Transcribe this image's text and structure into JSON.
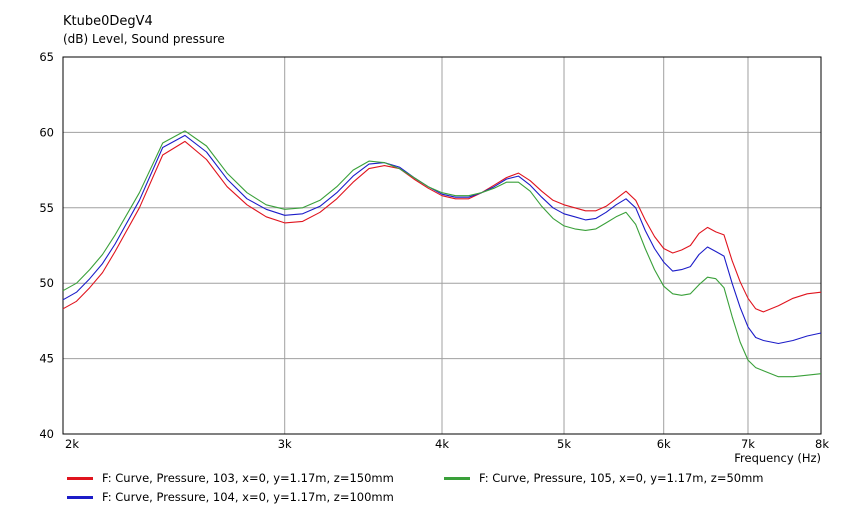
{
  "chart_data": {
    "type": "line",
    "title": "Ktube0DegV4",
    "ylabel": "(dB)  Level, Sound pressure",
    "xlabel": "Frequency  (Hz)",
    "x_scale": "log",
    "xlim": [
      2000,
      8000
    ],
    "ylim": [
      40,
      65
    ],
    "grid": true,
    "legend_position": "bottom",
    "x_ticks": [
      2000,
      3000,
      4000,
      5000,
      6000,
      7000,
      8000
    ],
    "x_tick_labels": [
      "2k",
      "3k",
      "4k",
      "5k",
      "6k",
      "7k",
      "8k"
    ],
    "y_ticks": [
      40,
      45,
      50,
      55,
      60,
      65
    ],
    "y_tick_labels": [
      "40",
      "45",
      "50",
      "55",
      "60",
      "65"
    ],
    "series": [
      {
        "name": "F: Curve, Pressure, 103, x=0, y=1.17m, z=150mm",
        "color": "#e0141e",
        "points": [
          [
            2000,
            48.3
          ],
          [
            2050,
            48.8
          ],
          [
            2100,
            49.7
          ],
          [
            2150,
            50.7
          ],
          [
            2200,
            52.1
          ],
          [
            2300,
            55.0
          ],
          [
            2400,
            58.5
          ],
          [
            2500,
            59.4
          ],
          [
            2600,
            58.2
          ],
          [
            2700,
            56.4
          ],
          [
            2800,
            55.2
          ],
          [
            2900,
            54.4
          ],
          [
            3000,
            54.0
          ],
          [
            3100,
            54.1
          ],
          [
            3200,
            54.7
          ],
          [
            3300,
            55.6
          ],
          [
            3400,
            56.7
          ],
          [
            3500,
            57.6
          ],
          [
            3600,
            57.8
          ],
          [
            3700,
            57.6
          ],
          [
            3800,
            56.9
          ],
          [
            3900,
            56.3
          ],
          [
            4000,
            55.8
          ],
          [
            4100,
            55.6
          ],
          [
            4200,
            55.6
          ],
          [
            4300,
            56.0
          ],
          [
            4400,
            56.5
          ],
          [
            4500,
            57.0
          ],
          [
            4600,
            57.3
          ],
          [
            4700,
            56.8
          ],
          [
            4800,
            56.1
          ],
          [
            4900,
            55.5
          ],
          [
            5000,
            55.2
          ],
          [
            5100,
            55.0
          ],
          [
            5200,
            54.8
          ],
          [
            5300,
            54.8
          ],
          [
            5400,
            55.1
          ],
          [
            5500,
            55.6
          ],
          [
            5600,
            56.1
          ],
          [
            5700,
            55.5
          ],
          [
            5800,
            54.2
          ],
          [
            5900,
            53.1
          ],
          [
            6000,
            52.3
          ],
          [
            6100,
            52.0
          ],
          [
            6200,
            52.2
          ],
          [
            6300,
            52.5
          ],
          [
            6400,
            53.3
          ],
          [
            6500,
            53.7
          ],
          [
            6600,
            53.4
          ],
          [
            6700,
            53.2
          ],
          [
            6800,
            51.5
          ],
          [
            6900,
            50.1
          ],
          [
            7000,
            49.0
          ],
          [
            7100,
            48.3
          ],
          [
            7200,
            48.1
          ],
          [
            7400,
            48.5
          ],
          [
            7600,
            49.0
          ],
          [
            7800,
            49.3
          ],
          [
            8000,
            49.4
          ]
        ]
      },
      {
        "name": "F: Curve, Pressure, 104, x=0, y=1.17m, z=100mm",
        "color": "#1c1cc8",
        "points": [
          [
            2000,
            48.9
          ],
          [
            2050,
            49.4
          ],
          [
            2100,
            50.3
          ],
          [
            2150,
            51.3
          ],
          [
            2200,
            52.6
          ],
          [
            2300,
            55.5
          ],
          [
            2400,
            59.0
          ],
          [
            2500,
            59.8
          ],
          [
            2600,
            58.7
          ],
          [
            2700,
            56.9
          ],
          [
            2800,
            55.6
          ],
          [
            2900,
            54.9
          ],
          [
            3000,
            54.5
          ],
          [
            3100,
            54.6
          ],
          [
            3200,
            55.1
          ],
          [
            3300,
            56.0
          ],
          [
            3400,
            57.1
          ],
          [
            3500,
            57.9
          ],
          [
            3600,
            58.0
          ],
          [
            3700,
            57.7
          ],
          [
            3800,
            57.0
          ],
          [
            3900,
            56.4
          ],
          [
            4000,
            55.9
          ],
          [
            4100,
            55.7
          ],
          [
            4200,
            55.7
          ],
          [
            4300,
            56.0
          ],
          [
            4400,
            56.4
          ],
          [
            4500,
            56.9
          ],
          [
            4600,
            57.1
          ],
          [
            4700,
            56.5
          ],
          [
            4800,
            55.7
          ],
          [
            4900,
            55.0
          ],
          [
            5000,
            54.6
          ],
          [
            5100,
            54.4
          ],
          [
            5200,
            54.2
          ],
          [
            5300,
            54.3
          ],
          [
            5400,
            54.7
          ],
          [
            5500,
            55.2
          ],
          [
            5600,
            55.6
          ],
          [
            5700,
            55.0
          ],
          [
            5800,
            53.5
          ],
          [
            5900,
            52.3
          ],
          [
            6000,
            51.4
          ],
          [
            6100,
            50.8
          ],
          [
            6200,
            50.9
          ],
          [
            6300,
            51.1
          ],
          [
            6400,
            51.9
          ],
          [
            6500,
            52.4
          ],
          [
            6600,
            52.1
          ],
          [
            6700,
            51.8
          ],
          [
            6800,
            50.0
          ],
          [
            6900,
            48.4
          ],
          [
            7000,
            47.1
          ],
          [
            7100,
            46.4
          ],
          [
            7200,
            46.2
          ],
          [
            7400,
            46.0
          ],
          [
            7600,
            46.2
          ],
          [
            7800,
            46.5
          ],
          [
            8000,
            46.7
          ]
        ]
      },
      {
        "name": "F: Curve, Pressure, 105, x=0, y=1.17m, z=50mm",
        "color": "#3aa03a",
        "points": [
          [
            2000,
            49.5
          ],
          [
            2050,
            50.0
          ],
          [
            2100,
            50.9
          ],
          [
            2150,
            51.9
          ],
          [
            2200,
            53.2
          ],
          [
            2300,
            56.0
          ],
          [
            2400,
            59.3
          ],
          [
            2500,
            60.1
          ],
          [
            2600,
            59.1
          ],
          [
            2700,
            57.3
          ],
          [
            2800,
            56.0
          ],
          [
            2900,
            55.2
          ],
          [
            3000,
            54.9
          ],
          [
            3100,
            55.0
          ],
          [
            3200,
            55.5
          ],
          [
            3300,
            56.4
          ],
          [
            3400,
            57.5
          ],
          [
            3500,
            58.1
          ],
          [
            3600,
            58.0
          ],
          [
            3700,
            57.6
          ],
          [
            3800,
            57.0
          ],
          [
            3900,
            56.4
          ],
          [
            4000,
            56.0
          ],
          [
            4100,
            55.8
          ],
          [
            4200,
            55.8
          ],
          [
            4300,
            56.0
          ],
          [
            4400,
            56.3
          ],
          [
            4500,
            56.7
          ],
          [
            4600,
            56.7
          ],
          [
            4700,
            56.1
          ],
          [
            4800,
            55.1
          ],
          [
            4900,
            54.3
          ],
          [
            5000,
            53.8
          ],
          [
            5100,
            53.6
          ],
          [
            5200,
            53.5
          ],
          [
            5300,
            53.6
          ],
          [
            5400,
            54.0
          ],
          [
            5500,
            54.4
          ],
          [
            5600,
            54.7
          ],
          [
            5700,
            53.9
          ],
          [
            5800,
            52.3
          ],
          [
            5900,
            50.9
          ],
          [
            6000,
            49.8
          ],
          [
            6100,
            49.3
          ],
          [
            6200,
            49.2
          ],
          [
            6300,
            49.3
          ],
          [
            6400,
            49.9
          ],
          [
            6500,
            50.4
          ],
          [
            6600,
            50.3
          ],
          [
            6700,
            49.7
          ],
          [
            6800,
            47.8
          ],
          [
            6900,
            46.1
          ],
          [
            7000,
            44.9
          ],
          [
            7100,
            44.4
          ],
          [
            7200,
            44.2
          ],
          [
            7400,
            43.8
          ],
          [
            7600,
            43.8
          ],
          [
            7800,
            43.9
          ],
          [
            8000,
            44.0
          ]
        ]
      }
    ]
  }
}
